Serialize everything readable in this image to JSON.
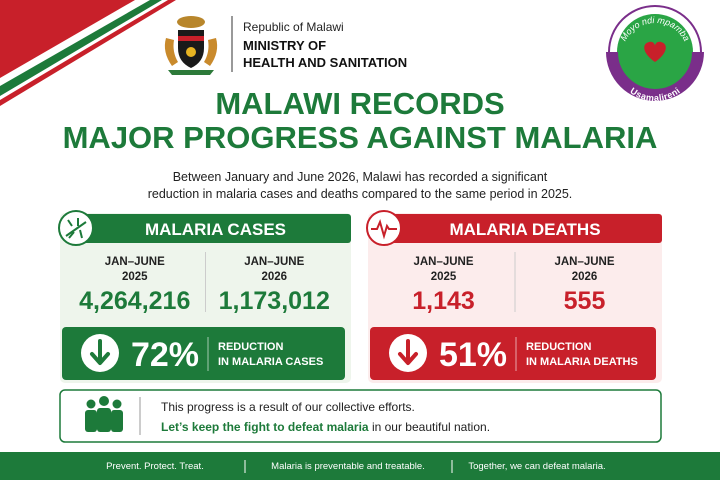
{
  "header": {
    "republic": "Republic of Malawi",
    "ministry": [
      "MINISTRY OF",
      "HEALTH AND SANITATION"
    ]
  },
  "logo": {
    "top": "Moyo ndi mpamba",
    "bottom": "Usamalireni"
  },
  "title": [
    "MALAWI RECORDS",
    "MAJOR PROGRESS AGAINST MALARIA"
  ],
  "intro": [
    "Between January and June 2026, Malawi has recorded a significant",
    "reduction in malaria cases and deaths compared to the same period in 2025."
  ],
  "panels": [
    {
      "title": "MALARIA CASES",
      "columns": [
        {
          "period": [
            "JAN–JUNE",
            "2025"
          ],
          "value": "4,264,216"
        },
        {
          "period": [
            "JAN–JUNE",
            "2026"
          ],
          "value": "1,173,012"
        }
      ],
      "reduction": {
        "percent": "72%",
        "label": [
          "REDUCTION",
          "IN MALARIA CASES"
        ]
      }
    },
    {
      "title": "MALARIA DEATHS",
      "columns": [
        {
          "period": [
            "JAN–JUNE",
            "2025"
          ],
          "value": "1,143"
        },
        {
          "period": [
            "JAN–JUNE",
            "2026"
          ],
          "value": "555"
        }
      ],
      "reduction": {
        "percent": "51%",
        "label": [
          "REDUCTION",
          "IN MALARIA DEATHS"
        ]
      }
    }
  ],
  "message": {
    "line1": "This progress is a result of our collective efforts.",
    "line2_bold": "Let’s keep the fight to defeat malaria",
    "line2_rest": " in our beautiful nation."
  },
  "footer": [
    "Prevent. Protect. Treat.",
    "Malaria is preventable and treatable.",
    "Together, we can defeat malaria."
  ]
}
